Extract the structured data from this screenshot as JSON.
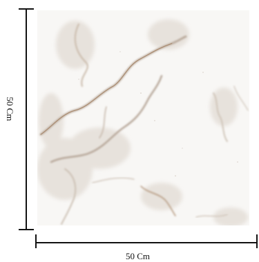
{
  "product": {
    "image_icon": "marble-tile-image",
    "colors": {
      "background": "#f8f7f5",
      "vein_main": "#b8a89a",
      "vein_warm": "#a8876a",
      "vein_light": "#d8cfc6"
    }
  },
  "dimensions": {
    "height_label": "50 Cm",
    "width_label": "50 Cm"
  }
}
